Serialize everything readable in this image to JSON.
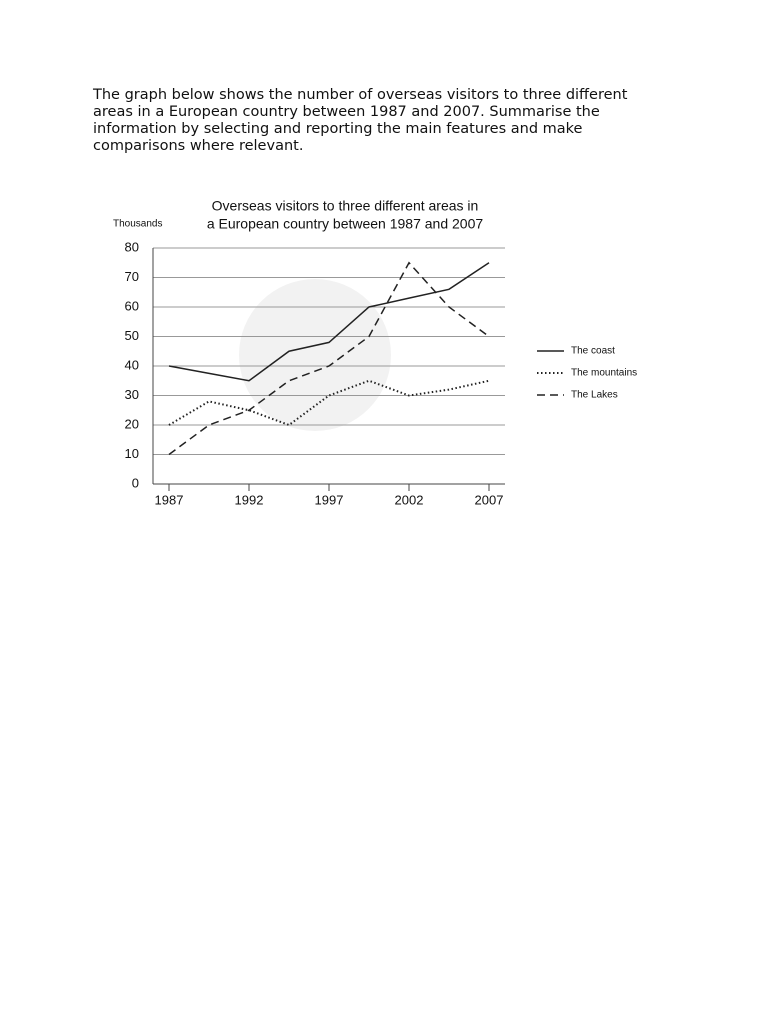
{
  "prompt": [
    "The graph below shows the number of overseas visitors to three different",
    "areas in a European country between 1987 and 2007. Summarise the",
    "information by selecting and reporting the main features and make",
    "comparisons where relevant."
  ],
  "chart_data": {
    "type": "line",
    "title": [
      "Overseas visitors to three different areas in",
      "a European country between 1987 and 2007"
    ],
    "y_label": "Thousands",
    "x": [
      1987,
      1989.5,
      1992,
      1994.5,
      1997,
      1999.5,
      2002,
      2004.5,
      2007
    ],
    "series": [
      {
        "name": "The coast",
        "color": "#222",
        "dash": "solid",
        "values": [
          40,
          37.5,
          35,
          45,
          48,
          60,
          63,
          66,
          75
        ]
      },
      {
        "name": "The mountains",
        "color": "#222",
        "dash": "dotted",
        "values": [
          20,
          28,
          25,
          20,
          30,
          35,
          30,
          32,
          35
        ]
      },
      {
        "name": "The Lakes",
        "color": "#222",
        "dash": "dashed",
        "values": [
          10,
          20,
          25,
          35,
          40,
          50,
          75,
          60,
          50
        ]
      }
    ],
    "xlim": [
      1986,
      2008
    ],
    "xticks": [
      1987,
      1992,
      1997,
      2002,
      2007
    ],
    "ylim": [
      0,
      80
    ],
    "yticks": [
      0,
      10,
      20,
      30,
      40,
      50,
      60,
      70,
      80
    ],
    "grid": true,
    "legend": "right"
  }
}
